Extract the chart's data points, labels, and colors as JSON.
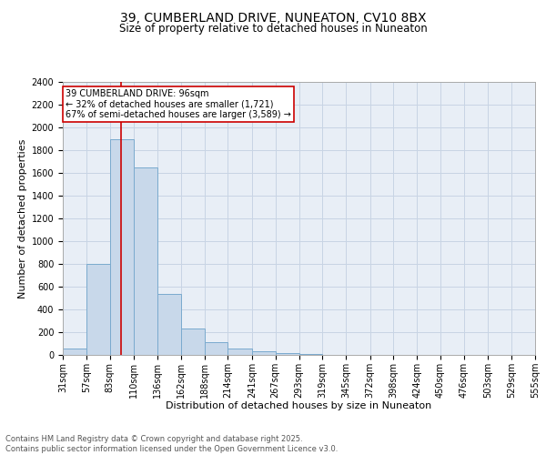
{
  "title_line1": "39, CUMBERLAND DRIVE, NUNEATON, CV10 8BX",
  "title_line2": "Size of property relative to detached houses in Nuneaton",
  "xlabel": "Distribution of detached houses by size in Nuneaton",
  "ylabel": "Number of detached properties",
  "footer_line1": "Contains HM Land Registry data © Crown copyright and database right 2025.",
  "footer_line2": "Contains public sector information licensed under the Open Government Licence v3.0.",
  "annotation_line1": "39 CUMBERLAND DRIVE: 96sqm",
  "annotation_line2": "← 32% of detached houses are smaller (1,721)",
  "annotation_line3": "67% of semi-detached houses are larger (3,589) →",
  "bar_values": [
    55,
    800,
    1900,
    1650,
    540,
    235,
    115,
    60,
    30,
    20,
    5,
    2,
    1,
    0,
    0,
    0,
    0,
    0,
    0,
    0
  ],
  "bar_edges": [
    31,
    57,
    83,
    110,
    136,
    162,
    188,
    214,
    241,
    267,
    293,
    319,
    345,
    372,
    398,
    424,
    450,
    476,
    503,
    529,
    555
  ],
  "x_tick_labels": [
    "31sqm",
    "57sqm",
    "83sqm",
    "110sqm",
    "136sqm",
    "162sqm",
    "188sqm",
    "214sqm",
    "241sqm",
    "267sqm",
    "293sqm",
    "319sqm",
    "345sqm",
    "372sqm",
    "398sqm",
    "424sqm",
    "450sqm",
    "476sqm",
    "503sqm",
    "529sqm",
    "555sqm"
  ],
  "ylim": [
    0,
    2400
  ],
  "yticks": [
    0,
    200,
    400,
    600,
    800,
    1000,
    1200,
    1400,
    1600,
    1800,
    2000,
    2200,
    2400
  ],
  "bar_facecolor": "#c8d8ea",
  "bar_edgecolor": "#7aaace",
  "grid_color": "#c8d4e4",
  "background_color": "#e8eef6",
  "vline_x": 96,
  "vline_color": "#cc0000",
  "annotation_box_edgecolor": "#cc0000",
  "annotation_box_facecolor": "#ffffff",
  "title_fontsize": 10,
  "subtitle_fontsize": 8.5,
  "axis_label_fontsize": 8,
  "tick_fontsize": 7,
  "annotation_fontsize": 7,
  "footer_fontsize": 6
}
